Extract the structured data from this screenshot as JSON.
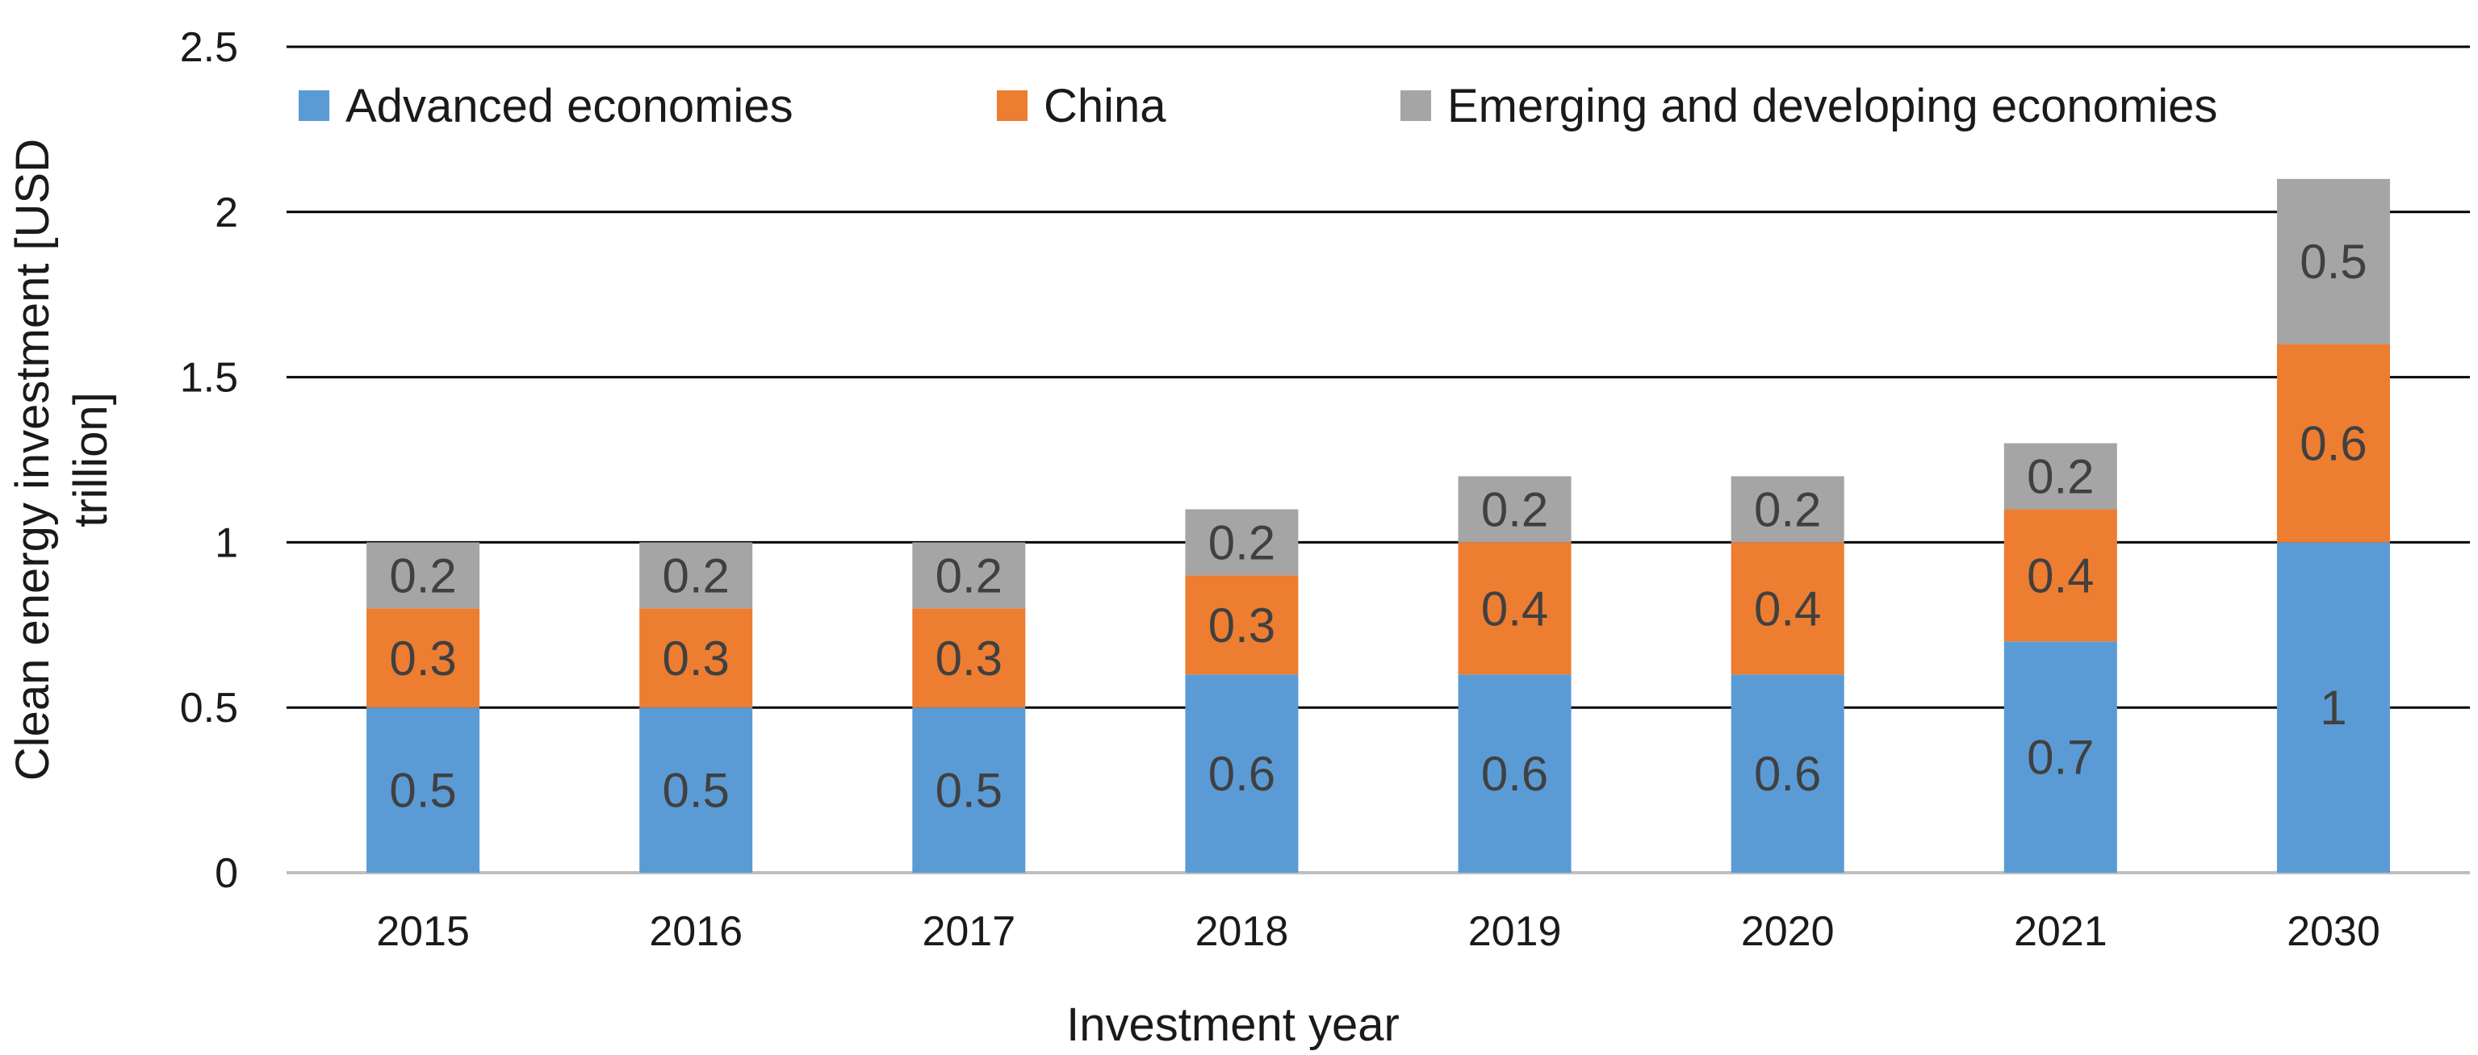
{
  "chart_data": {
    "type": "bar",
    "stacked": true,
    "title": "",
    "xlabel": "Investment year",
    "ylabel_lines": [
      "Clean energy investment [USD",
      "trillion]"
    ],
    "ylim": [
      0,
      2.5
    ],
    "yticks": [
      0,
      0.5,
      1,
      1.5,
      2,
      2.5
    ],
    "ytick_labels": [
      "0",
      "0.5",
      "1",
      "1.5",
      "2",
      "2.5"
    ],
    "grid": true,
    "legend_position": "top",
    "categories": [
      "2015",
      "2016",
      "2017",
      "2018",
      "2019",
      "2020",
      "2021",
      "2030"
    ],
    "series": [
      {
        "name": "Advanced economies",
        "color": "#5B9BD5",
        "values": [
          0.5,
          0.5,
          0.5,
          0.6,
          0.6,
          0.6,
          0.7,
          1
        ]
      },
      {
        "name": "China",
        "color": "#ED7D31",
        "values": [
          0.3,
          0.3,
          0.3,
          0.3,
          0.4,
          0.4,
          0.4,
          0.6
        ]
      },
      {
        "name": "Emerging and developing economies",
        "color": "#A5A5A5",
        "values": [
          0.2,
          0.2,
          0.2,
          0.2,
          0.2,
          0.2,
          0.2,
          0.5
        ]
      }
    ]
  }
}
